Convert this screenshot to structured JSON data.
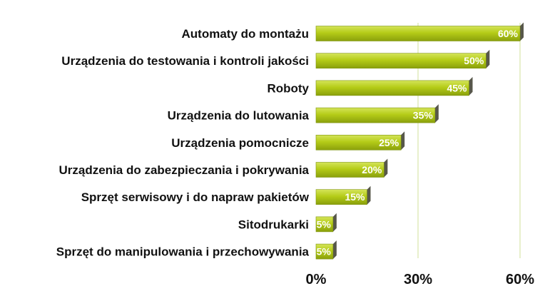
{
  "chart_data": {
    "type": "bar",
    "orientation": "horizontal",
    "title": "",
    "xlabel": "",
    "ylabel": "",
    "categories": [
      "Automaty do montażu",
      "Urządzenia do testowania i kontroli jakości",
      "Roboty",
      "Urządzenia do lutowania",
      "Urządzenia pomocnicze",
      "Urządzenia do zabezpieczania i pokrywania",
      "Sprzęt serwisowy i do napraw pakietów",
      "Sitodrukarki",
      "Sprzęt do manipulowania i przechowywania"
    ],
    "values": [
      60,
      50,
      45,
      35,
      25,
      20,
      15,
      5,
      5
    ],
    "value_labels": [
      "60%",
      "50%",
      "45%",
      "35%",
      "25%",
      "20%",
      "15%",
      "5%",
      "5%"
    ],
    "xlim": [
      0,
      60
    ],
    "ticks": [
      0,
      30,
      60
    ],
    "tick_labels": [
      "0%",
      "30%",
      "60%"
    ],
    "grid": true,
    "legend": "none",
    "colors": {
      "bar": "#b5cc18",
      "bar_light": "#d4e45a",
      "bar_dark": "#8aa00c",
      "gridline": "#d2e29a"
    }
  }
}
